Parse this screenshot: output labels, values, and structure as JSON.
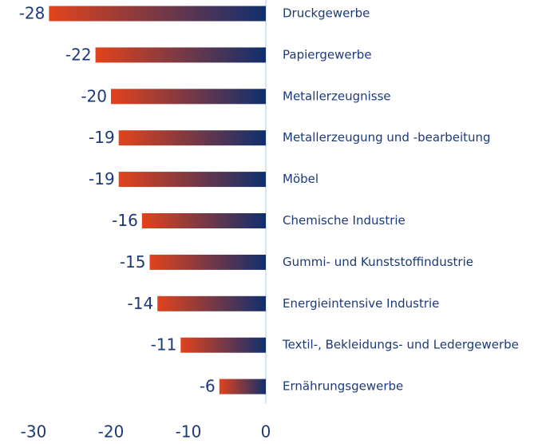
{
  "chart_data": {
    "type": "bar",
    "orientation": "horizontal",
    "categories": [
      "Druckgewerbe",
      "Papiergewerbe",
      "Metallerzeugnisse",
      "Metallerzeugung und -bearbeitung",
      "Möbel",
      "Chemische Industrie",
      "Gummi- und Kunststoffindustrie",
      "Energieintensive Industrie",
      "Textil-, Bekleidungs- und Ledergewerbe",
      "Ernährungsgewerbe"
    ],
    "values": [
      -28,
      -22,
      -20,
      -19,
      -19,
      -16,
      -15,
      -14,
      -11,
      -6
    ],
    "gradient": [
      "#e2431c",
      "#0f2f6e"
    ],
    "xlim": [
      -30,
      0
    ],
    "xticks": [
      -30,
      -20,
      -10,
      0
    ]
  }
}
